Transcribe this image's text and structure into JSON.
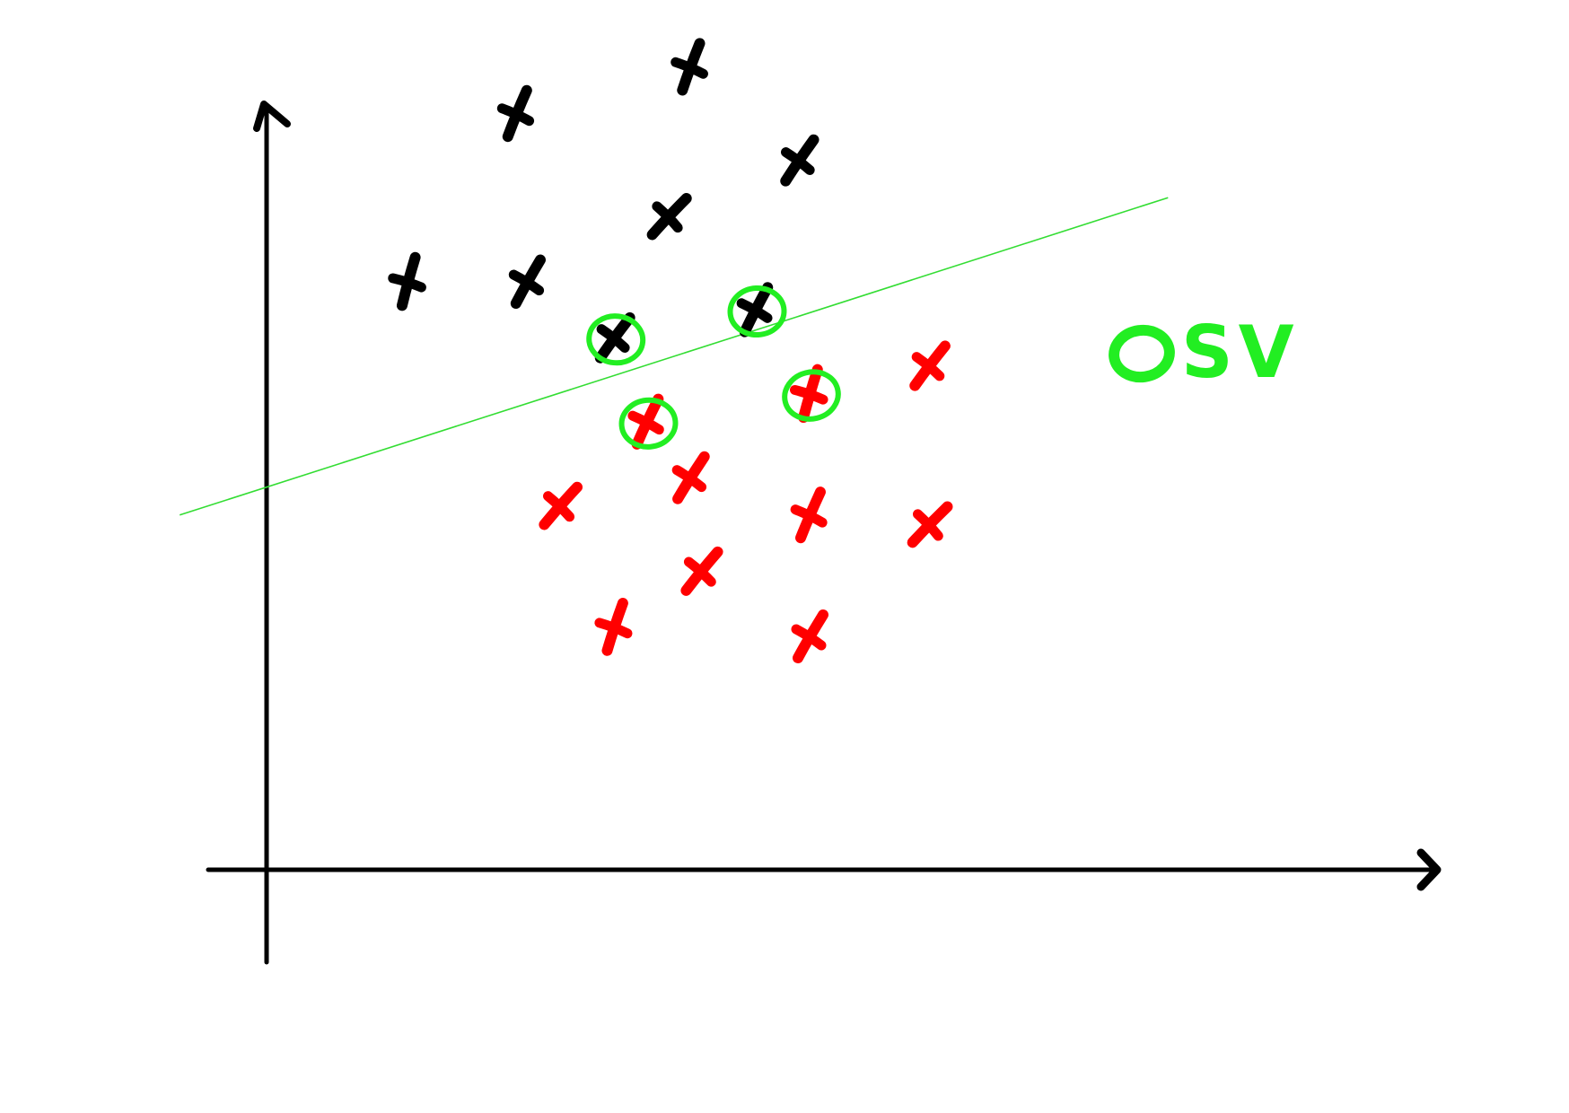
{
  "chart_data": {
    "type": "scatter",
    "title": "",
    "xlabel": "",
    "ylabel": "",
    "xlim": [
      0,
      10
    ],
    "ylim": [
      0,
      10
    ],
    "grid": false,
    "legend_placement": "top-right",
    "legend": {
      "marker": "circle",
      "label": "SV",
      "color": "#22ee22"
    },
    "series": [
      {
        "color": "#000000",
        "points": [
          {
            "x": 1.3,
            "y": 6.3,
            "sv": false
          },
          {
            "x": 2.3,
            "y": 8.1,
            "sv": false
          },
          {
            "x": 2.4,
            "y": 6.3,
            "sv": false
          },
          {
            "x": 3.2,
            "y": 5.7,
            "sv": true
          },
          {
            "x": 3.7,
            "y": 7.0,
            "sv": false
          },
          {
            "x": 3.9,
            "y": 8.6,
            "sv": false
          },
          {
            "x": 4.5,
            "y": 6.0,
            "sv": true
          },
          {
            "x": 4.9,
            "y": 7.6,
            "sv": false
          }
        ]
      },
      {
        "color": "#ff0000",
        "points": [
          {
            "x": 2.7,
            "y": 3.9,
            "sv": false
          },
          {
            "x": 3.2,
            "y": 2.6,
            "sv": false
          },
          {
            "x": 3.5,
            "y": 4.8,
            "sv": true
          },
          {
            "x": 3.9,
            "y": 4.2,
            "sv": false
          },
          {
            "x": 4.0,
            "y": 3.2,
            "sv": false
          },
          {
            "x": 5.0,
            "y": 5.1,
            "sv": true
          },
          {
            "x": 5.0,
            "y": 3.8,
            "sv": false
          },
          {
            "x": 5.0,
            "y": 2.5,
            "sv": false
          },
          {
            "x": 6.1,
            "y": 5.4,
            "sv": false
          },
          {
            "x": 6.1,
            "y": 3.7,
            "sv": false
          }
        ]
      }
    ],
    "decision_boundary": {
      "color": "#33dd33",
      "points": [
        [
          -0.8,
          3.8
        ],
        [
          8.3,
          7.2
        ]
      ]
    }
  }
}
